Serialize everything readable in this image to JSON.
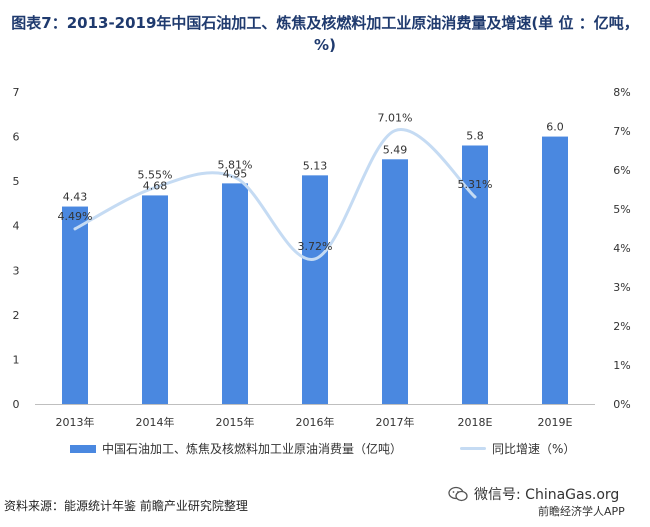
{
  "title": "图表7：2013-2019年中国石油加工、炼焦及核燃料加工业原油消费量及增速(单 位 ：亿吨，%)",
  "chart_data": {
    "type": "bar",
    "categories": [
      "2013年",
      "2014年",
      "2015年",
      "2016年",
      "2017年",
      "2018E",
      "2019E"
    ],
    "series": [
      {
        "name": "中国石油加工、炼焦及核燃料加工业原油消费量（亿吨）",
        "type": "bar",
        "axis": "left",
        "values": [
          4.43,
          4.68,
          4.95,
          5.13,
          5.49,
          5.8,
          6.0
        ],
        "labels": [
          "4.43",
          "4.68",
          "4.95",
          "5.13",
          "5.49",
          "5.8",
          "6.0"
        ],
        "color": "#4a88e0"
      },
      {
        "name": "同比增速（%）",
        "type": "line",
        "axis": "right",
        "values": [
          4.49,
          5.55,
          5.81,
          3.72,
          7.01,
          5.31,
          null
        ],
        "labels": [
          "4.49%",
          "5.55%",
          "5.81%",
          "3.72%",
          "7.01%",
          "5.31%",
          null
        ],
        "color": "#c5dbf3"
      }
    ],
    "y_left": {
      "min": 0,
      "max": 7,
      "ticks": [
        "0",
        "1",
        "2",
        "3",
        "4",
        "5",
        "6",
        "7"
      ]
    },
    "y_right": {
      "min": 0,
      "max": 8,
      "ticks": [
        "0%",
        "1%",
        "2%",
        "3%",
        "4%",
        "5%",
        "6%",
        "7%",
        "8%"
      ]
    },
    "grid": false,
    "legend_position": "bottom"
  },
  "source": "资料来源：能源统计年鉴  前瞻产业研究院整理",
  "wechat_label": "微信号: ChinaGas.org",
  "app_label": "前瞻经济学人APP"
}
